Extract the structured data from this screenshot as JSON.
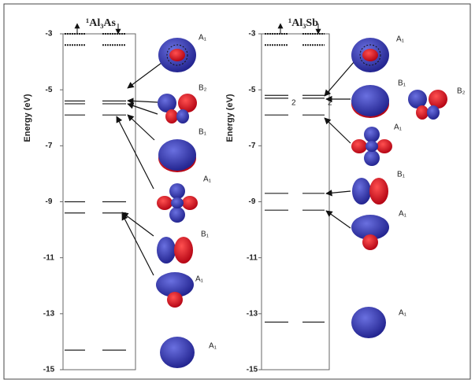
{
  "chart_data": [
    {
      "type": "levels",
      "title": "¹Al₃As",
      "ylabel": "Energy (eV)",
      "ylim": [
        -3,
        -15
      ],
      "yticks": [
        -3,
        -5,
        -7,
        -9,
        -11,
        -13,
        -15
      ],
      "levels": [
        {
          "energy": -3.0,
          "style": "dotted"
        },
        {
          "energy": -3.4,
          "style": "dotted"
        },
        {
          "energy": -5.4,
          "style": "solid"
        },
        {
          "energy": -5.5,
          "style": "solid"
        },
        {
          "energy": -5.9,
          "style": "solid"
        },
        {
          "energy": -9.0,
          "style": "solid"
        },
        {
          "energy": -9.4,
          "style": "solid"
        },
        {
          "energy": -14.3,
          "style": "solid"
        }
      ],
      "orbitals": [
        "A₁",
        "B₂",
        "B₁",
        "A₁",
        "B₁",
        "A₁",
        "A₁"
      ]
    },
    {
      "type": "levels",
      "title": "¹Al₃Sb",
      "ylabel": "Energy (eV)",
      "ylim": [
        -3,
        -15
      ],
      "yticks": [
        -3,
        -5,
        -7,
        -9,
        -11,
        -13,
        -15
      ],
      "levels": [
        {
          "energy": -3.0,
          "style": "dotted"
        },
        {
          "energy": -3.4,
          "style": "dotted"
        },
        {
          "energy": -5.2,
          "style": "solid"
        },
        {
          "energy": -5.3,
          "style": "solid",
          "degeneracy": 2
        },
        {
          "energy": -5.9,
          "style": "solid"
        },
        {
          "energy": -8.7,
          "style": "solid"
        },
        {
          "energy": -9.3,
          "style": "solid"
        },
        {
          "energy": -13.3,
          "style": "solid"
        }
      ],
      "orbitals": [
        "A₁",
        "B₁",
        "B₂",
        "A₁",
        "B₁",
        "A₁",
        "A₁"
      ]
    }
  ]
}
